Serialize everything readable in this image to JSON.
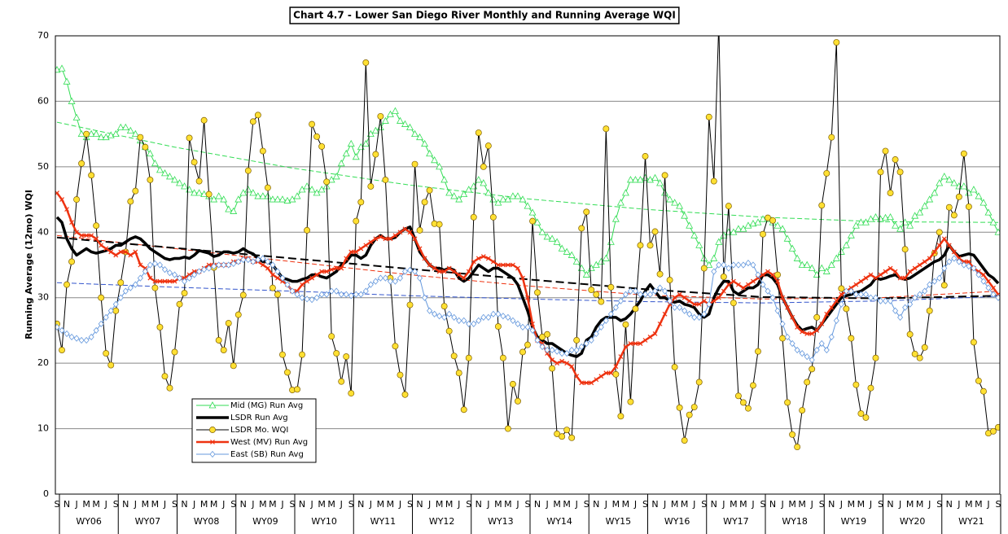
{
  "chart_data": {
    "type": "line",
    "title": "Chart 4.7 - Lower San Diego River Monthly and Running Average WQI",
    "y_label": "Running Average (12mo) WQI",
    "ylim": [
      0,
      70
    ],
    "yticks": [
      0,
      10,
      20,
      30,
      40,
      50,
      60,
      70
    ],
    "grid": true,
    "categories": [
      "S",
      null,
      "N",
      null,
      "J",
      null,
      "M",
      null,
      "M",
      null,
      "J",
      null,
      "S",
      null,
      "N",
      null,
      "J",
      null,
      "M",
      null,
      "M",
      null,
      "J",
      null,
      "S",
      null,
      "N",
      null,
      "J",
      null,
      "M",
      null,
      "M",
      null,
      "J",
      null,
      "S",
      null,
      "N",
      null,
      "J",
      null,
      "M",
      null,
      "M",
      null,
      "J",
      null,
      "S",
      null,
      "N",
      null,
      "J",
      null,
      "M",
      null,
      "M",
      null,
      "J",
      null,
      "S",
      null,
      "N",
      null,
      "J",
      null,
      "M",
      null,
      "M",
      null,
      "J",
      null,
      "S",
      null,
      "N",
      null,
      "J",
      null,
      "M",
      null,
      "M",
      null,
      "J",
      null,
      "S",
      null,
      "N",
      null,
      "J",
      null,
      "M",
      null,
      "M",
      null,
      "J",
      null,
      "S",
      null,
      "N",
      null,
      "J",
      null,
      "M",
      null,
      "M",
      null,
      "J",
      null,
      "S",
      null,
      "N",
      null,
      "J",
      null,
      "M",
      null,
      "M",
      null,
      "J",
      null,
      "S",
      null,
      "N",
      null,
      "J",
      null,
      "M",
      null,
      "M",
      null,
      "J",
      null,
      "S",
      null,
      "N",
      null,
      "J",
      null,
      "M",
      null,
      "M",
      null,
      "J",
      null,
      "S",
      null,
      "N",
      null,
      "J",
      null,
      "M",
      null,
      "M",
      null,
      "J",
      null,
      "S",
      null,
      "N",
      null,
      "J",
      null,
      "M",
      null,
      "M",
      null,
      "J",
      null,
      "S",
      null,
      "N",
      null,
      "J",
      null,
      "M",
      null,
      "M",
      null,
      "J",
      null,
      "S",
      null,
      "N",
      null,
      "J",
      null,
      "M",
      null,
      "M",
      null,
      "J",
      null,
      "S"
    ],
    "year_labels": [
      "WY06",
      "WY07",
      "WY08",
      "WY09",
      "WY10",
      "WY11",
      "WY12",
      "WY13",
      "WY14",
      "WY15",
      "WY16",
      "WY17",
      "WY18",
      "WY19",
      "WY20",
      "WY21"
    ],
    "series": [
      {
        "name": "Mid (MG) Run Avg",
        "color": "#33dd55",
        "marker": "triangle",
        "line_width": 1,
        "values": [
          64.8,
          65,
          63,
          60,
          57.5,
          55,
          54.5,
          55,
          55,
          54.5,
          54.5,
          54.8,
          55,
          56,
          56,
          55.5,
          55,
          54,
          53,
          52,
          50.5,
          49.5,
          49,
          48.5,
          48,
          47.5,
          47,
          46.5,
          46,
          46,
          45.8,
          45.5,
          45,
          45.5,
          45,
          43.5,
          43.2,
          45,
          46,
          46.5,
          46,
          45.5,
          45.5,
          45.5,
          45,
          45,
          45,
          44.8,
          45,
          45.5,
          46.5,
          47,
          46.5,
          46,
          46.5,
          47,
          48,
          48.5,
          50.5,
          52,
          53.5,
          51.5,
          53,
          53.5,
          55,
          55.5,
          56,
          57,
          58,
          58.5,
          57,
          56.5,
          56,
          55,
          54.5,
          53.5,
          52,
          51,
          50,
          48,
          46,
          45.5,
          45,
          45.8,
          46.5,
          47,
          48,
          47.5,
          46,
          45,
          44.5,
          45,
          45,
          45.5,
          45.5,
          45,
          44,
          43,
          41.5,
          40,
          39.3,
          39,
          38.5,
          37.5,
          37,
          36.5,
          35.5,
          34.5,
          33.5,
          34.5,
          35,
          35.5,
          36,
          38.5,
          42,
          44.5,
          46,
          48,
          48,
          48,
          48.3,
          48,
          48.3,
          47.5,
          46,
          45,
          44.5,
          44,
          42.5,
          41,
          39.5,
          38,
          36,
          35,
          36,
          38.5,
          39.5,
          40,
          40,
          40.5,
          40.5,
          41,
          41.3,
          41.5,
          42,
          42,
          41.5,
          41,
          40.5,
          39,
          37.5,
          36,
          35,
          35,
          34.5,
          33.5,
          34.5,
          34,
          35,
          36,
          37,
          38,
          39.5,
          41,
          41.5,
          41.5,
          42,
          42.3,
          42,
          42.2,
          42.3,
          41,
          40.5,
          41.5,
          41,
          42.5,
          43,
          44,
          45,
          46,
          47.5,
          48.5,
          48,
          47.5,
          47,
          47,
          46,
          46.5,
          45.5,
          44.5,
          43,
          41.5,
          40
        ]
      },
      {
        "name": "LSDR Run Avg",
        "color": "#000000",
        "marker": "none",
        "line_width": 3.5,
        "values": [
          42.3,
          41.5,
          39,
          37.5,
          36.5,
          37,
          37.5,
          37,
          36.8,
          37,
          37.2,
          37.5,
          38,
          38,
          38.5,
          39,
          39.3,
          39,
          38.3,
          37.5,
          37,
          36.5,
          36,
          35.8,
          36,
          36,
          36.2,
          36,
          36.5,
          37.2,
          37,
          36.8,
          36.3,
          36.5,
          37,
          37,
          36.8,
          37,
          37.5,
          37,
          36.7,
          36,
          35.5,
          35.5,
          35,
          34,
          33,
          32.8,
          32.5,
          32.5,
          32.8,
          33,
          33.5,
          33.5,
          33.2,
          33,
          33.5,
          34,
          35,
          35.5,
          36.5,
          36.5,
          36,
          36.5,
          38,
          39,
          39.5,
          39,
          39,
          39.2,
          40,
          40.5,
          40.8,
          39,
          37,
          36,
          35,
          34.5,
          34.5,
          34.2,
          34.5,
          34.2,
          33,
          32.5,
          33,
          34,
          35,
          34.5,
          34,
          34.5,
          34.5,
          34,
          33.5,
          33,
          32,
          30,
          28,
          25.5,
          24,
          23.5,
          23,
          23,
          22.5,
          22,
          21.5,
          21.2,
          21,
          21.5,
          23.5,
          24,
          25.5,
          26.5,
          27,
          27,
          27,
          26.5,
          26.8,
          27.5,
          28.5,
          29.5,
          31,
          32,
          31,
          30,
          30,
          29.5,
          29.3,
          29.5,
          29,
          28.8,
          28.5,
          27.5,
          27,
          27.5,
          30,
          31.5,
          32.5,
          32.5,
          31,
          30.5,
          31,
          31.5,
          31.5,
          32,
          33.5,
          33.5,
          33,
          32,
          30,
          28.5,
          27,
          25.8,
          25,
          25.3,
          25.5,
          25,
          26,
          27,
          28,
          29,
          30,
          30.3,
          30.5,
          30.8,
          31,
          31.5,
          32,
          33,
          32.8,
          33,
          33.3,
          33.5,
          33,
          32.8,
          33,
          33.5,
          34,
          34.5,
          35,
          35.5,
          35.8,
          36.5,
          38,
          37,
          36.3,
          36.5,
          36.7,
          36.5,
          35.5,
          34.5,
          33.5,
          33,
          32.2
        ]
      },
      {
        "name": "LSDR Mo. WQI",
        "color": "#000000",
        "marker": "circle",
        "marker_fill": "#ffe033",
        "line_width": 1,
        "values": [
          26,
          22,
          32,
          35.5,
          45,
          50.5,
          55,
          48.7,
          41,
          30,
          21.5,
          19.7,
          28,
          32.3,
          37,
          44.7,
          46.3,
          54.5,
          53,
          48,
          31.5,
          25.5,
          18,
          16.2,
          21.7,
          29,
          30.7,
          54.4,
          50.7,
          47.8,
          57.1,
          45.8,
          34.6,
          23.5,
          22,
          26.1,
          19.6,
          27.4,
          30.4,
          49.4,
          56.9,
          57.9,
          52.4,
          46.8,
          31.5,
          30.5,
          21.3,
          18.6,
          15.9,
          16,
          21.3,
          40.3,
          56.5,
          54.6,
          53.1,
          47.7,
          24.1,
          21.5,
          17.2,
          21,
          15.4,
          41.7,
          44.6,
          65.9,
          47,
          51.9,
          57.7,
          48,
          33,
          22.6,
          18.2,
          15.2,
          28.9,
          50.4,
          40.3,
          44.6,
          46.4,
          41.3,
          41.2,
          28.7,
          24.9,
          21.1,
          18.5,
          12.9,
          20.8,
          42.3,
          55.2,
          50,
          53.2,
          42.3,
          25.6,
          20.8,
          10,
          16.8,
          14.2,
          21.7,
          22.8,
          41.7,
          30.8,
          24,
          24.4,
          19.2,
          9.2,
          8.8,
          9.8,
          8.6,
          23.5,
          40.6,
          43.1,
          31.2,
          30.5,
          29.4,
          55.8,
          31.6,
          18.3,
          11.9,
          25.9,
          14.1,
          28.3,
          38,
          51.6,
          38,
          40.1,
          33.6,
          48.7,
          32.7,
          19.4,
          13.2,
          8.2,
          12.1,
          13.3,
          17.1,
          34.5,
          57.6,
          47.8,
          72,
          33.2,
          44,
          29.2,
          15,
          14,
          13.1,
          16.6,
          21.8,
          39.7,
          42.2,
          41.8,
          33.5,
          23.8,
          14,
          9.1,
          7.2,
          12.8,
          17.1,
          19.1,
          27,
          44.1,
          49,
          54.5,
          69,
          31.4,
          28.3,
          23.8,
          16.7,
          12.3,
          11.7,
          16.2,
          20.8,
          49.2,
          52.4,
          46,
          51.1,
          49.2,
          37.4,
          24.4,
          21.4,
          20.8,
          22.4,
          28,
          36.8,
          40,
          31.9,
          43.8,
          42.6,
          45.4,
          52,
          43.9,
          23.2,
          17.3,
          15.7,
          9.3,
          9.6,
          10.2
        ]
      },
      {
        "name": "West (MV) Run Avg",
        "color": "#ee3311",
        "marker": "x",
        "line_width": 2.5,
        "values": [
          46,
          45,
          43.5,
          41.5,
          40,
          39.5,
          39.5,
          39.5,
          39,
          38,
          37.5,
          37,
          36.5,
          37,
          37,
          36.5,
          37,
          35,
          34.5,
          33,
          32.5,
          32.5,
          32.5,
          32.5,
          32.5,
          33,
          33,
          33.5,
          34,
          34,
          34.5,
          35,
          35,
          35,
          35,
          35,
          35.5,
          35.5,
          36,
          36,
          35.5,
          35.5,
          35,
          34.5,
          33.5,
          33,
          32.5,
          32,
          31,
          31,
          32,
          32.5,
          33,
          33.5,
          34,
          34,
          34.3,
          34.5,
          34.5,
          36,
          37,
          37,
          37.5,
          38,
          38.5,
          39,
          39.3,
          39,
          39,
          39.5,
          40,
          40.5,
          40,
          39,
          37.5,
          36,
          35,
          34.5,
          34,
          34,
          34.5,
          34,
          33.5,
          33,
          34,
          35.5,
          36,
          36.3,
          36,
          35.5,
          35,
          35,
          35,
          35,
          34.5,
          33,
          30,
          26,
          23.5,
          23,
          21.5,
          20.5,
          20,
          20.3,
          20,
          19.5,
          18,
          17,
          17,
          17,
          17.5,
          18,
          18.5,
          18.5,
          19.5,
          21,
          22.5,
          23,
          23,
          23,
          23.5,
          24,
          24.5,
          26,
          27.5,
          29,
          30,
          30.5,
          30,
          29.5,
          29,
          29,
          29.5,
          29,
          29.5,
          30,
          31,
          32,
          32.5,
          32,
          31.5,
          32,
          32.5,
          33,
          33.5,
          34,
          33.5,
          32.5,
          30,
          28.5,
          27,
          25.5,
          24.8,
          24.5,
          24.5,
          25,
          26,
          27.5,
          28.5,
          29.5,
          30.5,
          31,
          31.5,
          32,
          32.5,
          33,
          33.5,
          33,
          33.5,
          34,
          34.5,
          34,
          33,
          33,
          34,
          34.5,
          35,
          35.5,
          36,
          37,
          38,
          39,
          38,
          37,
          36,
          35.5,
          35.5,
          34.5,
          34,
          33.5,
          32.5,
          31.5,
          30.5
        ]
      },
      {
        "name": "East (SB) Run Avg",
        "color": "#6699dd",
        "marker": "diamond",
        "line_width": 1,
        "values": [
          25.5,
          25,
          24.5,
          24,
          23.8,
          23.5,
          23.5,
          24,
          25,
          26,
          27,
          28,
          29,
          30,
          31,
          31.5,
          32,
          33,
          34,
          35,
          35.2,
          35,
          34.3,
          33.8,
          33.5,
          33,
          32.5,
          33,
          33.5,
          34,
          34.3,
          34.5,
          34.8,
          35,
          35,
          35,
          35.2,
          35.5,
          35.8,
          35.8,
          35.5,
          35.8,
          36,
          35.5,
          35,
          34,
          33,
          32,
          31,
          30.5,
          30,
          29.8,
          29.7,
          30,
          30.5,
          30.5,
          31,
          31,
          30.5,
          30.5,
          30.3,
          30.5,
          30.5,
          31,
          32,
          32.5,
          33,
          33,
          32.5,
          32.5,
          33,
          34,
          34.2,
          34,
          33,
          30,
          28,
          27.5,
          27.2,
          27,
          27.5,
          27,
          26.5,
          26.5,
          26,
          26,
          26.5,
          27,
          27,
          27.5,
          27.5,
          27.2,
          27,
          26.5,
          26,
          25.5,
          25.5,
          25,
          23.5,
          22.5,
          22,
          22,
          21.8,
          21.5,
          21.5,
          22,
          22,
          22.5,
          23,
          23.5,
          24.5,
          25.5,
          26.5,
          27.5,
          28.5,
          29.5,
          30.5,
          31,
          31,
          30.5,
          30.5,
          30.5,
          31,
          31.5,
          31,
          29.5,
          28.5,
          28.5,
          28,
          27.5,
          27,
          27,
          27.5,
          29,
          34,
          35,
          35,
          34.5,
          35,
          35,
          35,
          35.3,
          35,
          33.5,
          32,
          31,
          30,
          28,
          26,
          24,
          23,
          22,
          21.5,
          21,
          20.5,
          22,
          23,
          22,
          24,
          26.5,
          29,
          31,
          31,
          30.5,
          30.5,
          30.5,
          30,
          30,
          29.5,
          29.5,
          29.5,
          28,
          27,
          28.5,
          29,
          30,
          30.5,
          31,
          32,
          32.5,
          33,
          34.5,
          35.5,
          36,
          35.5,
          35,
          34.8,
          34.5,
          33.5,
          32.5,
          31.5,
          30.5,
          30
        ]
      }
    ],
    "trendlines": [
      {
        "color": "#33dd55",
        "x": [
          0,
          24,
          48,
          72,
          96,
          120,
          144,
          168,
          192
        ],
        "values": [
          56.8,
          53,
          49.8,
          47.2,
          45.1,
          43.5,
          42.3,
          41.6,
          41.5
        ]
      },
      {
        "color": "#ee3311",
        "x": [
          0,
          24,
          48,
          72,
          96,
          120,
          144,
          168,
          192
        ],
        "values": [
          39.5,
          37.5,
          35.5,
          33.5,
          31.8,
          30.4,
          29.8,
          30,
          31
        ]
      },
      {
        "color": "#3355cc",
        "x": [
          0,
          24,
          48,
          72,
          96,
          120,
          144,
          168,
          192
        ],
        "values": [
          32.3,
          31.6,
          31,
          30.3,
          29.8,
          29.4,
          29.2,
          29.5,
          30.2
        ]
      },
      {
        "color": "#000000",
        "x": [
          0,
          24,
          48,
          72,
          96,
          120,
          144,
          168,
          192
        ],
        "values": [
          39.2,
          37.6,
          36,
          34.4,
          32.8,
          31.3,
          30.1,
          29.9,
          30.3
        ]
      }
    ]
  }
}
